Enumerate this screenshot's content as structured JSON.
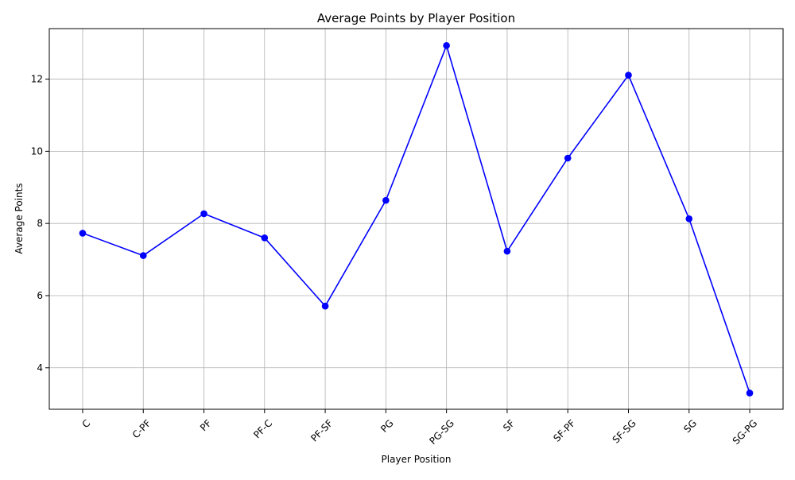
{
  "chart_data": {
    "type": "line",
    "title": "Average Points by Player Position",
    "xlabel": "Player Position",
    "ylabel": "Average Points",
    "categories": [
      "C",
      "C-PF",
      "PF",
      "PF-C",
      "PF-SF",
      "PG",
      "PG-SG",
      "SF",
      "SF-PF",
      "SF-SG",
      "SG",
      "SG-PG"
    ],
    "series": [
      {
        "values": [
          7.73,
          7.11,
          8.27,
          7.6,
          5.71,
          8.64,
          12.93,
          7.23,
          9.81,
          12.11,
          8.13,
          3.3
        ],
        "color": "#0000ff",
        "marker": "circle"
      }
    ],
    "ylim": [
      2.85,
      13.4
    ],
    "yticks": [
      4,
      6,
      8,
      10,
      12
    ],
    "grid": true,
    "x_tick_rotation_deg": 45
  }
}
